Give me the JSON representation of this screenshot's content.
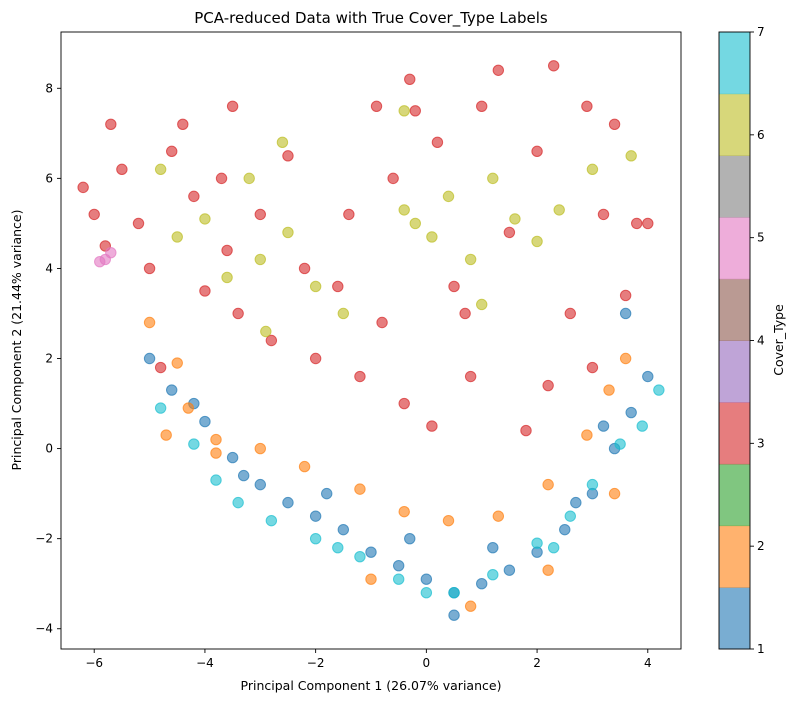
{
  "chart_data": {
    "type": "scatter",
    "title": "PCA-reduced Data with True Cover_Type Labels",
    "xlabel": "Principal Component 1 (26.07% variance)",
    "ylabel": "Principal Component 2 (21.44% variance)",
    "xlim": [
      -6.6,
      4.6
    ],
    "ylim": [
      -4.45,
      9.25
    ],
    "xticks": [
      -6,
      -4,
      -2,
      0,
      2,
      4
    ],
    "xtick_labels": [
      "−6",
      "−4",
      "−2",
      "0",
      "2",
      "4"
    ],
    "yticks": [
      -4,
      -2,
      0,
      2,
      4,
      6,
      8
    ],
    "ytick_labels": [
      "−4",
      "−2",
      "0",
      "2",
      "4",
      "6",
      "8"
    ],
    "grid": false,
    "colorbar": {
      "label": "Cover_Type",
      "range": [
        1,
        7
      ],
      "ticks": [
        1,
        2,
        3,
        4,
        5,
        6,
        7
      ],
      "tick_labels": [
        "1",
        "2",
        "3",
        "4",
        "5",
        "6",
        "7"
      ],
      "colors": [
        "#1f77b4",
        "#ff7f0e",
        "#2ca02c",
        "#d62728",
        "#9467bd",
        "#8c564b",
        "#e377c2",
        "#7f7f7f",
        "#bcbd22",
        "#17becf"
      ]
    },
    "series": [
      {
        "class": 1,
        "color": "#1f77b4",
        "points": [
          [
            -5.0,
            2.0
          ],
          [
            -4.6,
            1.3
          ],
          [
            -4.0,
            0.6
          ],
          [
            -3.5,
            -0.2
          ],
          [
            -3.0,
            -0.8
          ],
          [
            -2.5,
            -1.2
          ],
          [
            -2.0,
            -1.5
          ],
          [
            -1.5,
            -1.8
          ],
          [
            -1.0,
            -2.3
          ],
          [
            -0.5,
            -2.6
          ],
          [
            0.0,
            -2.9
          ],
          [
            0.5,
            -3.2
          ],
          [
            0.5,
            -3.7
          ],
          [
            1.0,
            -3.0
          ],
          [
            1.5,
            -2.7
          ],
          [
            2.0,
            -2.3
          ],
          [
            2.5,
            -1.8
          ],
          [
            3.0,
            -1.0
          ],
          [
            3.4,
            0.0
          ],
          [
            3.7,
            0.8
          ],
          [
            4.0,
            1.6
          ],
          [
            3.6,
            3.0
          ],
          [
            -4.2,
            1.0
          ],
          [
            -3.3,
            -0.6
          ],
          [
            -1.8,
            -1.0
          ],
          [
            -0.3,
            -2.0
          ],
          [
            1.2,
            -2.2
          ],
          [
            2.7,
            -1.2
          ],
          [
            3.2,
            0.5
          ]
        ]
      },
      {
        "class": 2,
        "color": "#ff7f0e",
        "points": [
          [
            -5.0,
            2.8
          ],
          [
            -4.5,
            1.9
          ],
          [
            -4.3,
            0.9
          ],
          [
            -4.7,
            0.3
          ],
          [
            -3.8,
            0.2
          ],
          [
            -3.0,
            0.0
          ],
          [
            -2.2,
            -0.4
          ],
          [
            -1.2,
            -0.9
          ],
          [
            -0.4,
            -1.4
          ],
          [
            0.4,
            -1.6
          ],
          [
            1.3,
            -1.5
          ],
          [
            2.2,
            -0.8
          ],
          [
            2.9,
            0.3
          ],
          [
            3.3,
            1.3
          ],
          [
            3.6,
            2.0
          ],
          [
            -1.0,
            -2.9
          ],
          [
            0.8,
            -3.5
          ],
          [
            2.2,
            -2.7
          ],
          [
            3.4,
            -1.0
          ],
          [
            -3.8,
            -0.1
          ]
        ]
      },
      {
        "class": 4,
        "color": "#d62728",
        "points": [
          [
            -6.2,
            5.8
          ],
          [
            -6.0,
            5.2
          ],
          [
            -5.8,
            4.5
          ],
          [
            -5.7,
            7.2
          ],
          [
            -5.5,
            6.2
          ],
          [
            -5.2,
            5.0
          ],
          [
            -5.0,
            4.0
          ],
          [
            -4.6,
            6.6
          ],
          [
            -4.4,
            7.2
          ],
          [
            -4.2,
            5.6
          ],
          [
            -4.0,
            3.5
          ],
          [
            -3.7,
            6.0
          ],
          [
            -3.5,
            7.6
          ],
          [
            -3.4,
            3.0
          ],
          [
            -3.0,
            5.2
          ],
          [
            -2.8,
            2.4
          ],
          [
            -2.5,
            6.5
          ],
          [
            -2.2,
            4.0
          ],
          [
            -2.0,
            2.0
          ],
          [
            -1.6,
            3.6
          ],
          [
            -1.2,
            1.6
          ],
          [
            -0.8,
            2.8
          ],
          [
            -0.4,
            1.0
          ],
          [
            -0.2,
            7.5
          ],
          [
            -0.3,
            8.2
          ],
          [
            0.1,
            0.5
          ],
          [
            0.2,
            6.8
          ],
          [
            0.5,
            3.6
          ],
          [
            0.8,
            1.6
          ],
          [
            1.0,
            7.6
          ],
          [
            1.3,
            8.4
          ],
          [
            1.5,
            4.8
          ],
          [
            1.8,
            0.4
          ],
          [
            2.0,
            6.6
          ],
          [
            2.3,
            8.5
          ],
          [
            2.6,
            3.0
          ],
          [
            2.9,
            7.6
          ],
          [
            3.0,
            1.8
          ],
          [
            3.2,
            5.2
          ],
          [
            3.4,
            7.2
          ],
          [
            3.6,
            3.4
          ],
          [
            3.8,
            5.0
          ],
          [
            4.0,
            5.0
          ],
          [
            -1.4,
            5.2
          ],
          [
            -3.6,
            4.4
          ],
          [
            0.7,
            3.0
          ],
          [
            2.2,
            1.4
          ],
          [
            -4.8,
            1.8
          ],
          [
            -0.6,
            6.0
          ],
          [
            -0.9,
            7.6
          ]
        ]
      },
      {
        "class": 5,
        "color": "#e377c2",
        "points": [
          [
            -5.8,
            4.2
          ],
          [
            -5.9,
            4.15
          ],
          [
            -5.7,
            4.35
          ]
        ]
      },
      {
        "class": 6,
        "color": "#bcbd22",
        "points": [
          [
            -4.8,
            6.2
          ],
          [
            -4.5,
            4.7
          ],
          [
            -4.0,
            5.1
          ],
          [
            -3.6,
            3.8
          ],
          [
            -3.2,
            6.0
          ],
          [
            -3.0,
            4.2
          ],
          [
            -2.6,
            6.8
          ],
          [
            -2.5,
            4.8
          ],
          [
            -2.0,
            3.6
          ],
          [
            -2.9,
            2.6
          ],
          [
            -0.4,
            5.3
          ],
          [
            -0.2,
            5.0
          ],
          [
            0.1,
            4.7
          ],
          [
            0.4,
            5.6
          ],
          [
            0.8,
            4.2
          ],
          [
            1.2,
            6.0
          ],
          [
            1.6,
            5.1
          ],
          [
            2.0,
            4.6
          ],
          [
            2.4,
            5.3
          ],
          [
            3.0,
            6.2
          ],
          [
            3.7,
            6.5
          ],
          [
            -0.4,
            7.5
          ],
          [
            1.0,
            3.2
          ],
          [
            -1.5,
            3.0
          ]
        ]
      },
      {
        "class": 7,
        "color": "#17becf",
        "points": [
          [
            -4.8,
            0.9
          ],
          [
            -4.2,
            0.1
          ],
          [
            -3.8,
            -0.7
          ],
          [
            -3.4,
            -1.2
          ],
          [
            -2.8,
            -1.6
          ],
          [
            -2.0,
            -2.0
          ],
          [
            -1.2,
            -2.4
          ],
          [
            -0.5,
            -2.9
          ],
          [
            0.0,
            -3.2
          ],
          [
            0.5,
            -3.2
          ],
          [
            1.2,
            -2.8
          ],
          [
            2.0,
            -2.1
          ],
          [
            2.6,
            -1.5
          ],
          [
            3.0,
            -0.8
          ],
          [
            3.5,
            0.1
          ],
          [
            3.9,
            0.5
          ],
          [
            4.2,
            1.3
          ],
          [
            2.3,
            -2.2
          ],
          [
            -1.6,
            -2.2
          ]
        ]
      }
    ]
  }
}
